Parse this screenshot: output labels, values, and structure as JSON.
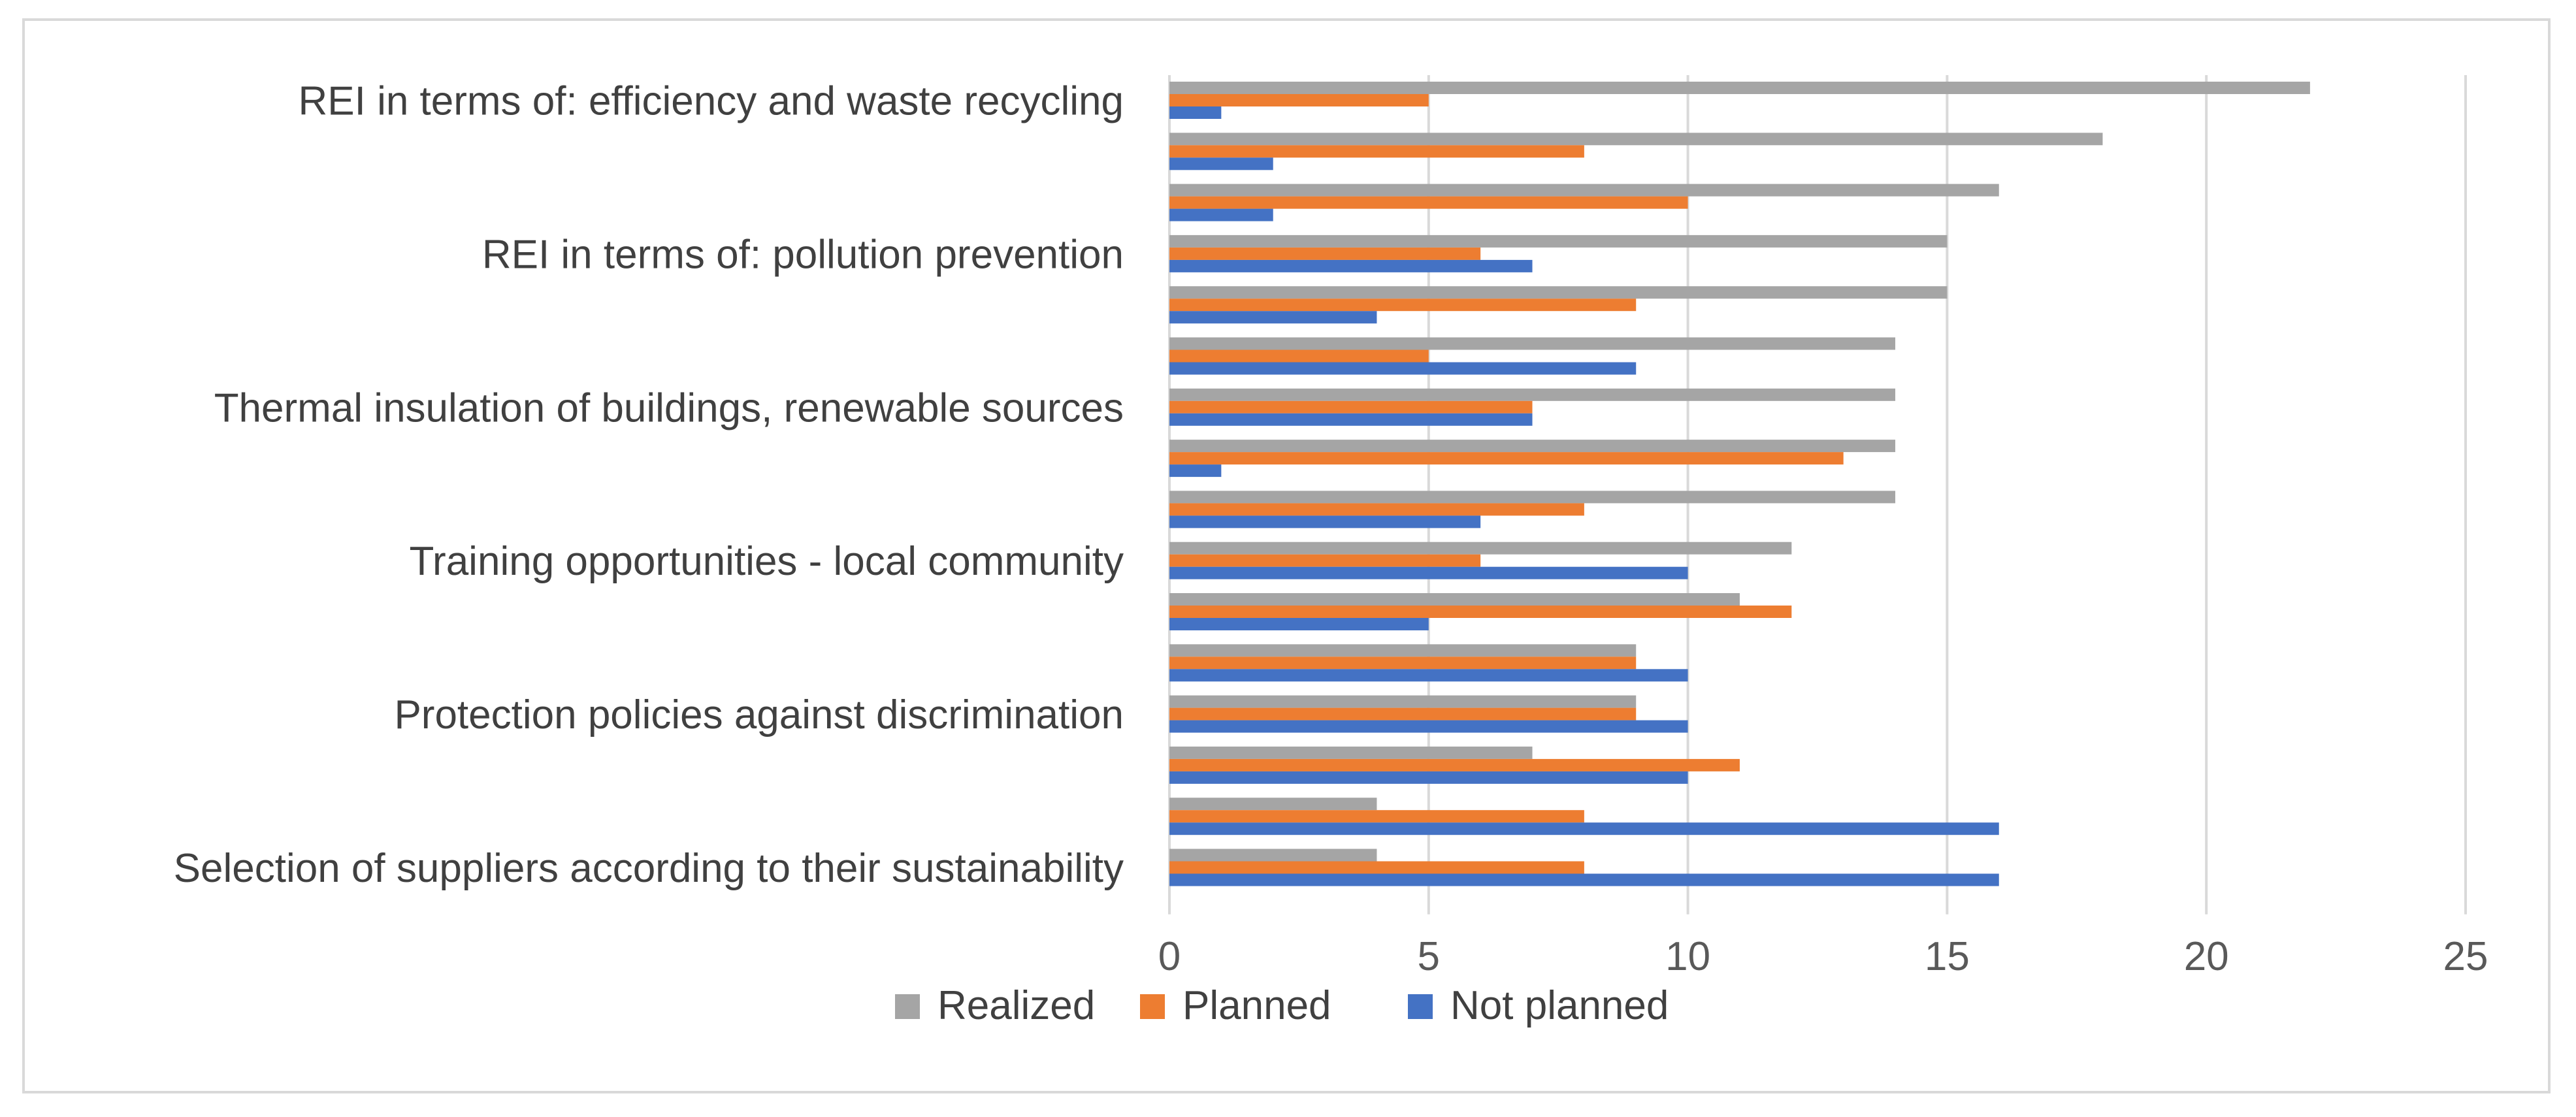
{
  "chart_data": {
    "type": "bar",
    "orientation": "horizontal",
    "title": "",
    "xlabel": "",
    "ylabel": "",
    "xlim": [
      0,
      25
    ],
    "x_ticks": [
      0,
      5,
      10,
      15,
      20,
      25
    ],
    "grid": true,
    "legend_position": "bottom",
    "category_labels": [
      "REI in terms of: efficiency and waste recycling",
      "REI in terms of: pollution prevention",
      "Thermal insulation of buildings, renewable sources",
      "Training opportunities - local community",
      "Protection policies against discrimination",
      "Selection of suppliers according to their sustainability"
    ],
    "categories": [
      "REI in terms of: efficiency and waste recycling",
      "",
      "",
      "REI in terms of: pollution prevention",
      "",
      "",
      "Thermal insulation of buildings, renewable sources",
      "",
      "",
      "Training opportunities - local community",
      "",
      "",
      "Protection policies against discrimination",
      "",
      "",
      "Selection of suppliers according to their sustainability"
    ],
    "series": [
      {
        "name": "Realized",
        "color": "#a5a5a5",
        "values": [
          22,
          18,
          16,
          15,
          15,
          14,
          14,
          14,
          14,
          12,
          11,
          9,
          9,
          7,
          4,
          4
        ]
      },
      {
        "name": "Planned",
        "color": "#ed7d31",
        "values": [
          5,
          8,
          10,
          6,
          9,
          5,
          7,
          13,
          8,
          6,
          12,
          9,
          9,
          11,
          8,
          8
        ]
      },
      {
        "name": "Not planned",
        "color": "#4472c4",
        "values": [
          1,
          2,
          2,
          7,
          4,
          9,
          7,
          1,
          6,
          10,
          5,
          10,
          10,
          10,
          16,
          16
        ]
      }
    ]
  },
  "colors": {
    "grid": "#d9d9d9",
    "frame": "#d9d9d9"
  }
}
